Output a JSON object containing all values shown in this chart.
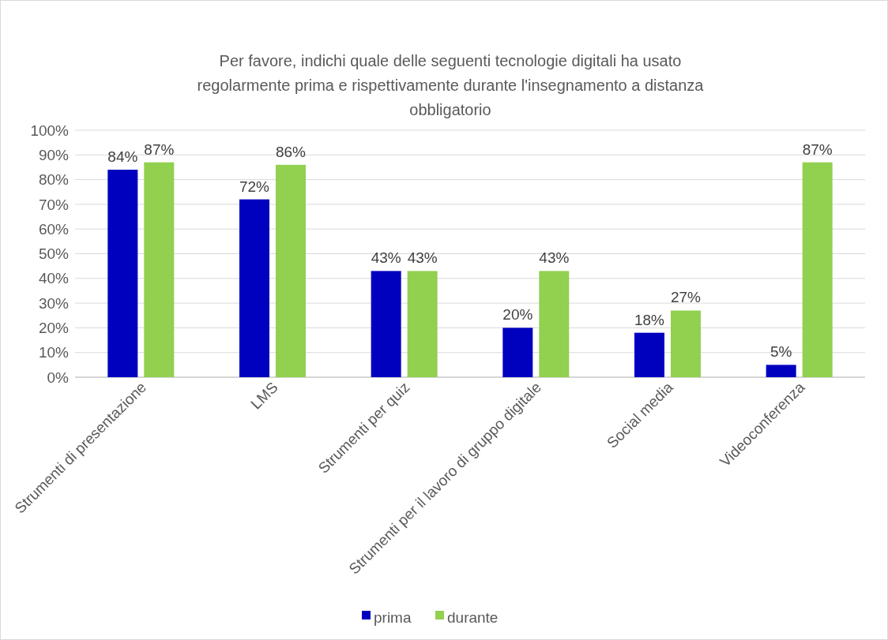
{
  "chart_data": {
    "type": "bar",
    "title": "Per favore, indichi quale delle seguenti tecnologie digitali ha usato\nregolarmente prima e rispettivamente durante l'insegnamento a distanza\nobbligatorio",
    "categories": [
      "Strumenti di presentazione",
      "LMS",
      "Strumenti per quiz",
      "Strumenti per il lavoro di gruppo digitale",
      "Social media",
      "Videoconferenza"
    ],
    "series": [
      {
        "name": "prima",
        "color": "#0000bf",
        "values": [
          84,
          72,
          43,
          20,
          18,
          5
        ],
        "value_labels": [
          "84%",
          "72%",
          "43%",
          "20%",
          "18%",
          "5%"
        ]
      },
      {
        "name": "durante",
        "color": "#92d050",
        "values": [
          87,
          86,
          43,
          43,
          27,
          87
        ],
        "value_labels": [
          "87%",
          "86%",
          "43%",
          "43%",
          "27%",
          "87%"
        ]
      }
    ],
    "ylim": [
      0,
      100
    ],
    "yticks": [
      {
        "value": 0,
        "label": "0%"
      },
      {
        "value": 10,
        "label": "10%"
      },
      {
        "value": 20,
        "label": "20%"
      },
      {
        "value": 30,
        "label": "30%"
      },
      {
        "value": 40,
        "label": "40%"
      },
      {
        "value": 50,
        "label": "50%"
      },
      {
        "value": 60,
        "label": "60%"
      },
      {
        "value": 70,
        "label": "70%"
      },
      {
        "value": 80,
        "label": "80%"
      },
      {
        "value": 90,
        "label": "90%"
      },
      {
        "value": 100,
        "label": "100%"
      }
    ],
    "grid": "y",
    "legend": "bottom"
  }
}
